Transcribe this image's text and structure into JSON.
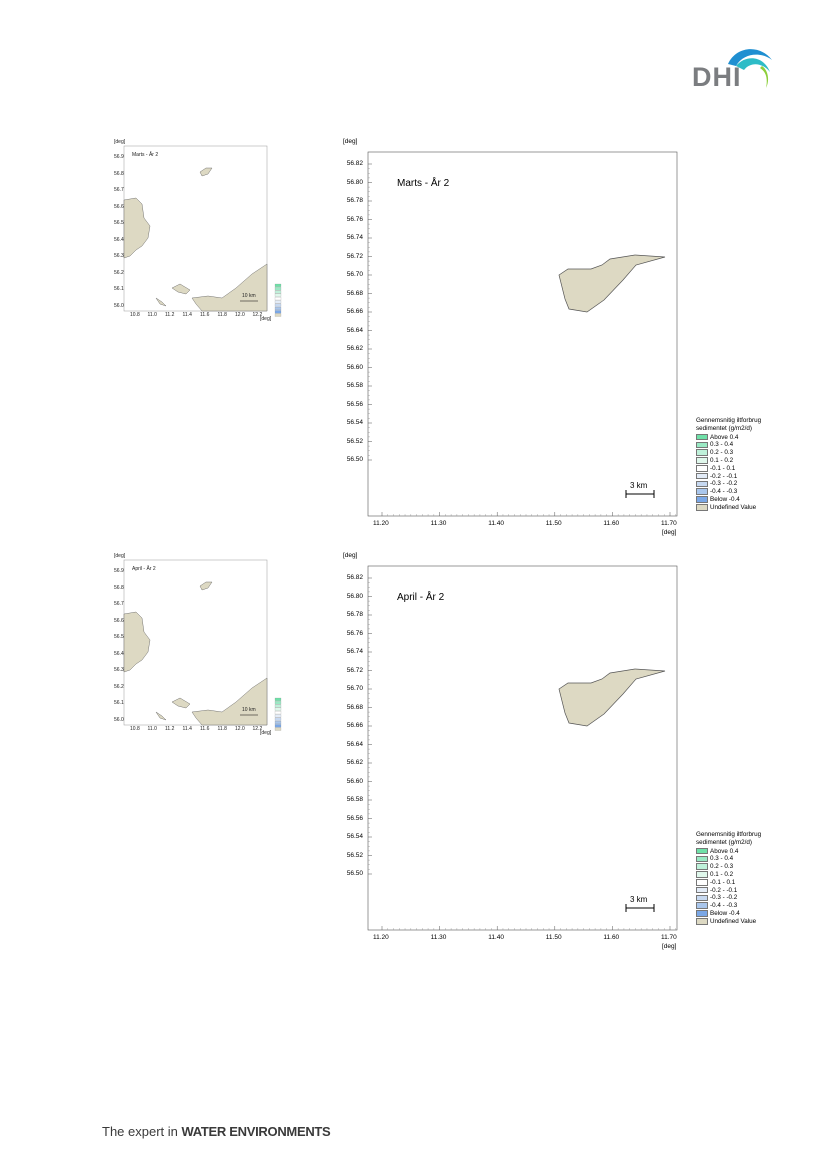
{
  "brand": {
    "logo_text": "DHI",
    "footer_regular": "The expert in ",
    "footer_bold": "WATER ENVIRONMENTS"
  },
  "colors": {
    "land": "#ddd9c3",
    "land_stroke": "#555555",
    "brand_blue": "#1f8fd1",
    "brand_teal": "#2dbcc7"
  },
  "maps": [
    {
      "title": "Marts - År 2",
      "y_unit": "[deg]",
      "x_unit": "[deg]",
      "y_ticks": [
        "56.82",
        "56.80",
        "56.78",
        "56.76",
        "56.74",
        "56.72",
        "56.70",
        "56.68",
        "56.66",
        "56.64",
        "56.62",
        "56.60",
        "56.58",
        "56.56",
        "56.54",
        "56.52",
        "56.50"
      ],
      "x_ticks": [
        "11.20",
        "11.30",
        "11.40",
        "11.50",
        "11.60",
        "11.70"
      ],
      "scale_label": "3 km",
      "legend": {
        "title_line1": "Gennemsnitig iltforbrug",
        "title_line2": "sedimentet (g/m2/d)",
        "items": [
          {
            "label": "Above  0.4",
            "color": "#6fe0a8"
          },
          {
            "label": " 0.3 -  0.4",
            "color": "#9ae9c4"
          },
          {
            "label": " 0.2 -  0.3",
            "color": "#bff1da"
          },
          {
            "label": " 0.1 -  0.2",
            "color": "#e0f8ec"
          },
          {
            "label": "-0.1 -  0.1",
            "color": "#ffffff"
          },
          {
            "label": "-0.2 - -0.1",
            "color": "#e3ecf8"
          },
          {
            "label": "-0.3 - -0.2",
            "color": "#c7d9f1"
          },
          {
            "label": "-0.4 - -0.3",
            "color": "#a9c6ec"
          },
          {
            "label": "Below -0.4",
            "color": "#7aa7e6"
          },
          {
            "label": "Undefined Value",
            "color": "#ddd9c3"
          }
        ]
      },
      "thumbnail": {
        "title": "Marts - År 2",
        "y_unit": "[deg]",
        "x_unit": "[deg]",
        "scale_label": "10 km",
        "y_ticks": [
          "56.9",
          "56.8",
          "56.7",
          "56.6",
          "56.5",
          "56.4",
          "56.3",
          "56.2",
          "56.1",
          "56.0"
        ],
        "x_ticks": [
          "10.8",
          "11.0",
          "11.2",
          "11.4",
          "11.6",
          "11.8",
          "12.0",
          "12.2"
        ]
      }
    },
    {
      "title": "April - År 2",
      "y_unit": "[deg]",
      "x_unit": "[deg]",
      "y_ticks": [
        "56.82",
        "56.80",
        "56.78",
        "56.76",
        "56.74",
        "56.72",
        "56.70",
        "56.68",
        "56.66",
        "56.64",
        "56.62",
        "56.60",
        "56.58",
        "56.56",
        "56.54",
        "56.52",
        "56.50"
      ],
      "x_ticks": [
        "11.20",
        "11.30",
        "11.40",
        "11.50",
        "11.60",
        "11.70"
      ],
      "scale_label": "3 km",
      "legend": {
        "title_line1": "Gennemsnitig iltforbrug",
        "title_line2": "sedimentet (g/m2/d)",
        "items": [
          {
            "label": "Above  0.4",
            "color": "#6fe0a8"
          },
          {
            "label": " 0.3 -  0.4",
            "color": "#9ae9c4"
          },
          {
            "label": " 0.2 -  0.3",
            "color": "#bff1da"
          },
          {
            "label": " 0.1 -  0.2",
            "color": "#e0f8ec"
          },
          {
            "label": "-0.1 -  0.1",
            "color": "#ffffff"
          },
          {
            "label": "-0.2 - -0.1",
            "color": "#e3ecf8"
          },
          {
            "label": "-0.3 - -0.2",
            "color": "#c7d9f1"
          },
          {
            "label": "-0.4 - -0.3",
            "color": "#a9c6ec"
          },
          {
            "label": "Below -0.4",
            "color": "#7aa7e6"
          },
          {
            "label": "Undefined Value",
            "color": "#ddd9c3"
          }
        ]
      },
      "thumbnail": {
        "title": "April - År 2",
        "y_unit": "[deg]",
        "x_unit": "[deg]",
        "scale_label": "10 km",
        "y_ticks": [
          "56.9",
          "56.8",
          "56.7",
          "56.6",
          "56.5",
          "56.4",
          "56.3",
          "56.2",
          "56.1",
          "56.0"
        ],
        "x_ticks": [
          "10.8",
          "11.0",
          "11.2",
          "11.4",
          "11.6",
          "11.8",
          "12.0",
          "12.2"
        ]
      }
    }
  ]
}
